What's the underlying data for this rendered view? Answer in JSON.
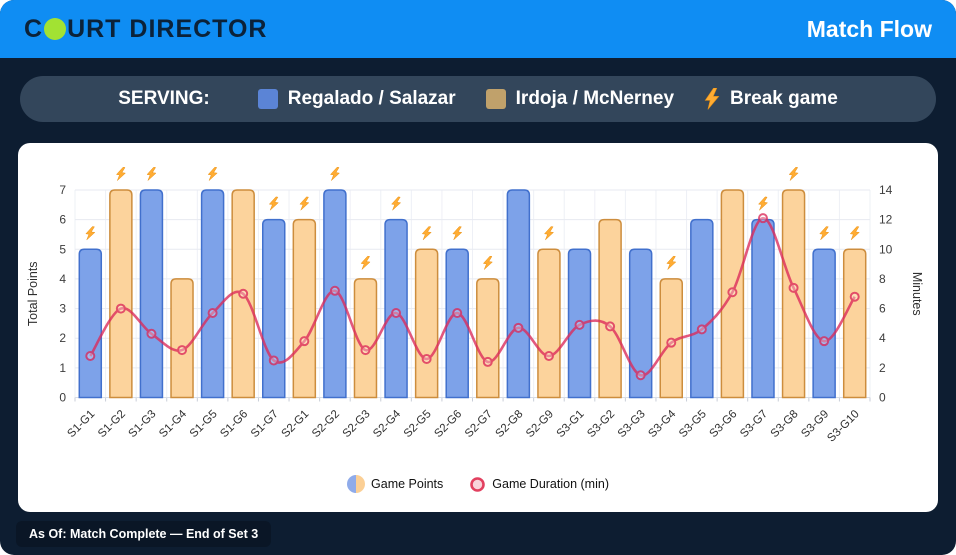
{
  "header": {
    "logo_text_before_ball": "C",
    "logo_text_after_ball": "URT DIRECTOR",
    "logo_ball_color": "#a2e233",
    "title": "Match Flow",
    "header_color": "#0f8df3"
  },
  "serving_legend": {
    "label": "SERVING:",
    "team_a_name": "Regalado / Salazar",
    "team_a_swatch_color": "#5b84d6",
    "team_b_name": "Irdoja / McNerney",
    "team_b_swatch_color": "#c0a16b",
    "break_icon": "lightning-bolt",
    "break_label": "Break game"
  },
  "chart_data": {
    "type": "bar+line",
    "categories": [
      "S1-G1",
      "S1-G2",
      "S1-G3",
      "S1-G4",
      "S1-G5",
      "S1-G6",
      "S1-G7",
      "S2-G1",
      "S2-G2",
      "S2-G3",
      "S2-G4",
      "S2-G5",
      "S2-G6",
      "S2-G7",
      "S2-G8",
      "S2-G9",
      "S3-G1",
      "S3-G2",
      "S3-G3",
      "S3-G4",
      "S3-G5",
      "S3-G6",
      "S3-G7",
      "S3-G8",
      "S3-G9",
      "S3-G10"
    ],
    "series": [
      {
        "name": "Game Points",
        "type": "bar",
        "axis": "left",
        "values": [
          5,
          7,
          7,
          4,
          7,
          7,
          6,
          6,
          7,
          4,
          6,
          5,
          5,
          4,
          7,
          5,
          5,
          6,
          5,
          4,
          6,
          7,
          6,
          7,
          5,
          5
        ]
      },
      {
        "name": "Game Duration (min)",
        "type": "line",
        "axis": "right",
        "values": [
          2.8,
          6.0,
          4.3,
          3.2,
          5.7,
          7.0,
          2.5,
          3.8,
          7.2,
          3.2,
          5.7,
          2.6,
          5.7,
          2.4,
          4.7,
          2.8,
          4.9,
          4.8,
          1.5,
          3.7,
          4.6,
          7.1,
          12.1,
          7.4,
          3.8,
          6.8
        ]
      }
    ],
    "serving": [
      "A",
      "B",
      "A",
      "B",
      "A",
      "B",
      "A",
      "B",
      "A",
      "B",
      "A",
      "B",
      "A",
      "B",
      "A",
      "B",
      "A",
      "B",
      "A",
      "B",
      "A",
      "B",
      "A",
      "B",
      "A",
      "B"
    ],
    "break_games": [
      true,
      true,
      true,
      false,
      true,
      false,
      true,
      true,
      true,
      true,
      true,
      true,
      true,
      true,
      false,
      true,
      false,
      false,
      false,
      true,
      false,
      false,
      true,
      true,
      true,
      true
    ],
    "left_axis": {
      "label": "Total Points",
      "min": 0,
      "max": 7,
      "tick_step": 1
    },
    "right_axis": {
      "label": "Minutes",
      "min": 0,
      "max": 14,
      "tick_step": 2
    },
    "legend": [
      {
        "label": "Game Points",
        "swatch": "split-circle"
      },
      {
        "label": "Game Duration (min)",
        "swatch": "ring"
      }
    ],
    "colors": {
      "team_a_bar": "#7da2e9",
      "team_a_border": "#4170cd",
      "team_b_bar": "#fcd39c",
      "team_b_border": "#cd8d3d",
      "duration_line": "#dc2a5a",
      "duration_ring_fill": "#f9d3da",
      "break_bolt": "#ffac33",
      "grid": "#e7eaf1"
    }
  },
  "footer": {
    "as_of": "As Of: Match Complete — End of Set 3"
  }
}
